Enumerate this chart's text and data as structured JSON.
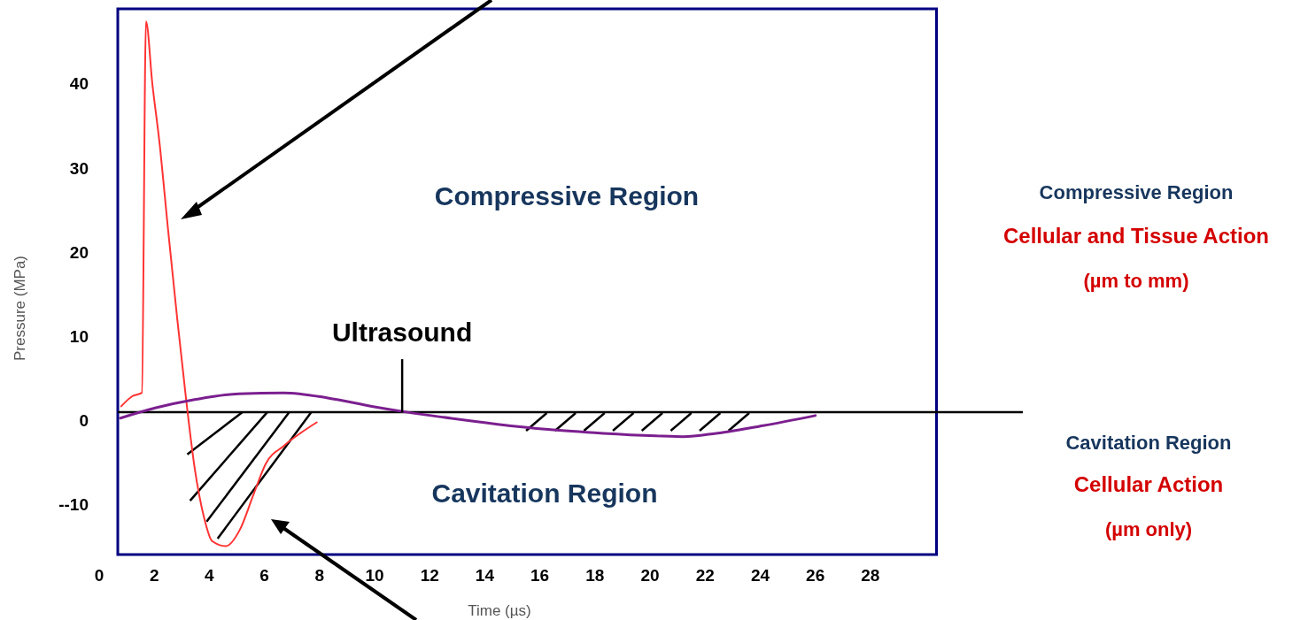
{
  "chart_data": {
    "type": "line",
    "xlabel": "Time (µs)",
    "ylabel": "Pressure (MPa)",
    "xlim": [
      0,
      30.4
    ],
    "xticks": [
      0,
      2,
      4,
      6,
      8,
      10,
      12,
      14,
      16,
      18,
      20,
      22,
      24,
      26,
      28
    ],
    "ylim": [
      -15.9,
      48.9
    ],
    "yticks": [
      {
        "value": -10,
        "label": "--10"
      },
      0,
      10,
      20,
      30,
      40
    ],
    "series": [
      {
        "color": "#ff3333",
        "x": [
          0.8,
          1.2,
          1.55,
          1.7,
          1.93,
          2.19,
          2.5,
          2.83,
          3.15,
          3.47,
          3.8,
          4.1,
          4.6,
          5.1,
          5.6,
          6.05,
          6.7,
          7.3,
          7.9
        ],
        "values": [
          1.7,
          2.9,
          3.3,
          47.4,
          40,
          33,
          22.7,
          12.2,
          2.7,
          -5.7,
          -11.4,
          -14.3,
          -14.9,
          -13,
          -8.8,
          -5.1,
          -3,
          -1.5,
          -0.2
        ]
      },
      {
        "color": "#7b1f8f",
        "x": [
          0.77,
          2.03,
          3.47,
          5.08,
          6.7,
          8.3,
          9.9,
          11.1,
          12.5,
          14.4,
          16.3,
          18.3,
          20.2,
          21.2,
          22.4,
          24.1,
          26
        ],
        "values": [
          0.3,
          1.5,
          2.5,
          3.2,
          3.3,
          2.7,
          1.7,
          1.05,
          0.4,
          -0.4,
          -1.05,
          -1.5,
          -1.8,
          -1.9,
          -1.5,
          -0.6,
          0.6
        ]
      }
    ],
    "ref_lines": [
      {
        "axis": "y",
        "value": 1,
        "color": "#000000"
      }
    ],
    "annotations": [
      {
        "text": "Ultrasound",
        "x": 11,
        "y": 1
      },
      "Compressive Region",
      "Cavitation Region",
      "Compressive Region",
      "Cellular and Tissue Action",
      "(µm to mm)",
      "Cavitation Region",
      "Cellular Action",
      "(µm only)"
    ]
  }
}
